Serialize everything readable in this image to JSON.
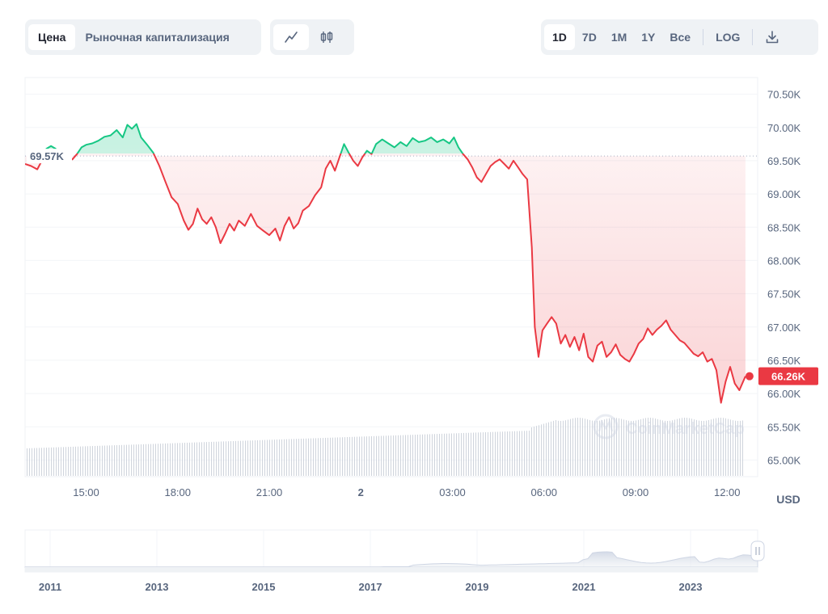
{
  "tabs": {
    "price_label": "Цена",
    "market_cap_label": "Рыночная капитализация"
  },
  "chart_type_icons": [
    "line-chart-icon",
    "candlestick-icon"
  ],
  "range": {
    "options": [
      "1D",
      "7D",
      "1M",
      "1Y",
      "Все"
    ],
    "selected": "1D",
    "log_label": "LOG",
    "download_icon": "download-icon"
  },
  "colors": {
    "up": "#16c784",
    "down": "#ea3943",
    "current_badge": "#ea3943"
  },
  "watermark": "CoinMarketCap",
  "chart_data": {
    "type": "line",
    "x_tick_labels": [
      "15:00",
      "18:00",
      "21:00",
      "2",
      "03:00",
      "06:00",
      "09:00",
      "12:00"
    ],
    "x_range_hours": [
      13.0,
      12.75
    ],
    "y_tick_labels": [
      "70.50K",
      "70.00K",
      "69.50K",
      "69.00K",
      "68.50K",
      "68.00K",
      "67.50K",
      "67.00K",
      "66.50K",
      "66.00K",
      "65.50K",
      "65.00K"
    ],
    "ylim": [
      64.75,
      70.75
    ],
    "y_unit": "USD",
    "reference_label": "69.57K",
    "reference_value": 69.57,
    "current_label": "66.26K",
    "current_value": 66.26,
    "series": [
      {
        "points": [
          [
            13.0,
            69.45
          ],
          [
            13.2,
            69.42
          ],
          [
            13.4,
            69.37
          ],
          [
            13.55,
            69.5
          ],
          [
            13.7,
            69.68
          ],
          [
            13.85,
            69.72
          ],
          [
            14.0,
            69.68
          ],
          [
            14.1,
            69.58
          ],
          [
            14.25,
            69.54
          ],
          [
            14.4,
            69.55
          ],
          [
            14.55,
            69.52
          ],
          [
            14.7,
            69.6
          ],
          [
            14.85,
            69.7
          ],
          [
            15.0,
            69.74
          ],
          [
            15.2,
            69.76
          ],
          [
            15.4,
            69.8
          ],
          [
            15.6,
            69.86
          ],
          [
            15.8,
            69.88
          ],
          [
            16.0,
            69.96
          ],
          [
            16.2,
            69.85
          ],
          [
            16.35,
            70.04
          ],
          [
            16.5,
            69.98
          ],
          [
            16.65,
            70.05
          ],
          [
            16.8,
            69.85
          ],
          [
            17.0,
            69.74
          ],
          [
            17.2,
            69.62
          ],
          [
            17.4,
            69.42
          ],
          [
            17.6,
            69.18
          ],
          [
            17.8,
            68.95
          ],
          [
            18.0,
            68.85
          ],
          [
            18.2,
            68.6
          ],
          [
            18.35,
            68.46
          ],
          [
            18.5,
            68.55
          ],
          [
            18.65,
            68.78
          ],
          [
            18.8,
            68.62
          ],
          [
            18.95,
            68.55
          ],
          [
            19.1,
            68.65
          ],
          [
            19.25,
            68.5
          ],
          [
            19.4,
            68.26
          ],
          [
            19.55,
            68.4
          ],
          [
            19.7,
            68.55
          ],
          [
            19.85,
            68.45
          ],
          [
            20.0,
            68.6
          ],
          [
            20.2,
            68.52
          ],
          [
            20.4,
            68.7
          ],
          [
            20.6,
            68.52
          ],
          [
            20.8,
            68.45
          ],
          [
            21.0,
            68.38
          ],
          [
            21.2,
            68.48
          ],
          [
            21.35,
            68.3
          ],
          [
            21.5,
            68.52
          ],
          [
            21.65,
            68.65
          ],
          [
            21.8,
            68.48
          ],
          [
            21.95,
            68.56
          ],
          [
            22.1,
            68.75
          ],
          [
            22.3,
            68.82
          ],
          [
            22.5,
            68.98
          ],
          [
            22.7,
            69.1
          ],
          [
            22.85,
            69.38
          ],
          [
            23.0,
            69.5
          ],
          [
            23.15,
            69.35
          ],
          [
            23.3,
            69.55
          ],
          [
            23.45,
            69.75
          ],
          [
            23.6,
            69.62
          ],
          [
            23.75,
            69.5
          ],
          [
            23.9,
            69.42
          ],
          [
            24.05,
            69.55
          ],
          [
            24.2,
            69.65
          ],
          [
            24.35,
            69.6
          ],
          [
            24.5,
            69.75
          ],
          [
            24.7,
            69.82
          ],
          [
            24.9,
            69.76
          ],
          [
            25.1,
            69.7
          ],
          [
            25.3,
            69.78
          ],
          [
            25.5,
            69.72
          ],
          [
            25.7,
            69.84
          ],
          [
            25.9,
            69.78
          ],
          [
            26.1,
            69.8
          ],
          [
            26.3,
            69.85
          ],
          [
            26.5,
            69.78
          ],
          [
            26.7,
            69.82
          ],
          [
            26.9,
            69.76
          ],
          [
            27.05,
            69.85
          ],
          [
            27.2,
            69.7
          ],
          [
            27.35,
            69.6
          ],
          [
            27.5,
            69.52
          ],
          [
            27.65,
            69.4
          ],
          [
            27.8,
            69.25
          ],
          [
            27.95,
            69.18
          ],
          [
            28.1,
            69.3
          ],
          [
            28.25,
            69.42
          ],
          [
            28.4,
            69.48
          ],
          [
            28.55,
            69.52
          ],
          [
            28.7,
            69.45
          ],
          [
            28.85,
            69.38
          ],
          [
            29.0,
            69.5
          ],
          [
            29.15,
            69.4
          ],
          [
            29.3,
            69.3
          ],
          [
            29.45,
            69.22
          ],
          [
            29.6,
            68.2
          ],
          [
            29.7,
            67.0
          ],
          [
            29.82,
            66.55
          ],
          [
            29.95,
            66.95
          ],
          [
            30.1,
            67.05
          ],
          [
            30.25,
            67.15
          ],
          [
            30.4,
            67.05
          ],
          [
            30.55,
            66.75
          ],
          [
            30.7,
            66.88
          ],
          [
            30.85,
            66.7
          ],
          [
            31.0,
            66.85
          ],
          [
            31.15,
            66.65
          ],
          [
            31.3,
            66.9
          ],
          [
            31.45,
            66.55
          ],
          [
            31.6,
            66.48
          ],
          [
            31.75,
            66.72
          ],
          [
            31.9,
            66.78
          ],
          [
            32.05,
            66.55
          ],
          [
            32.2,
            66.62
          ],
          [
            32.35,
            66.74
          ],
          [
            32.5,
            66.58
          ],
          [
            32.65,
            66.52
          ],
          [
            32.8,
            66.48
          ],
          [
            32.95,
            66.6
          ],
          [
            33.1,
            66.75
          ],
          [
            33.25,
            66.82
          ],
          [
            33.4,
            66.98
          ],
          [
            33.55,
            66.88
          ],
          [
            33.7,
            66.96
          ],
          [
            33.85,
            67.02
          ],
          [
            34.0,
            67.1
          ],
          [
            34.15,
            66.96
          ],
          [
            34.3,
            66.88
          ],
          [
            34.45,
            66.8
          ],
          [
            34.6,
            66.76
          ],
          [
            34.75,
            66.68
          ],
          [
            34.9,
            66.6
          ],
          [
            35.05,
            66.56
          ],
          [
            35.2,
            66.62
          ],
          [
            35.35,
            66.48
          ],
          [
            35.5,
            66.52
          ],
          [
            35.65,
            66.35
          ],
          [
            35.8,
            65.86
          ],
          [
            35.95,
            66.18
          ],
          [
            36.1,
            66.4
          ],
          [
            36.25,
            66.15
          ],
          [
            36.4,
            66.05
          ],
          [
            36.6,
            66.26
          ]
        ]
      }
    ],
    "volume_bars": "present (gray, bottom band)",
    "navigator": {
      "x_tick_labels": [
        "2011",
        "2013",
        "2015",
        "2017",
        "2019",
        "2021",
        "2023"
      ],
      "handle_icon": "pause-handle-icon"
    }
  }
}
